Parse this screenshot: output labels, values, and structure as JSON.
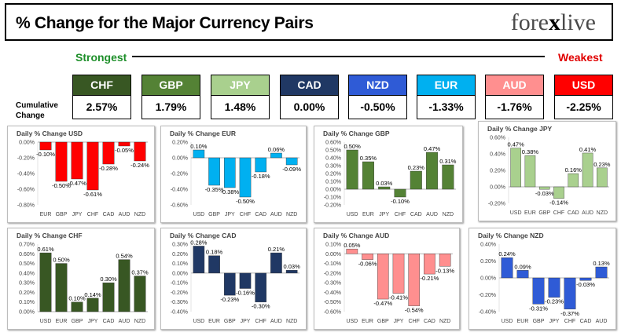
{
  "title": "% Change for the Major Currency Pairs",
  "logo": {
    "part1": "fore",
    "part2": "x",
    "part3": "live"
  },
  "scale": {
    "strongest": "Strongest",
    "weakest": "Weakest"
  },
  "cumulative_label": "Cumulative Change",
  "colors": {
    "CHF": "#385723",
    "GBP": "#548235",
    "JPY": "#a9d08e",
    "CAD": "#203864",
    "NZD": "#2f5bd6",
    "EUR": "#00b0f0",
    "AUD": "#ff8f8f",
    "USD": "#ff0000"
  },
  "cumulative": [
    {
      "currency": "CHF",
      "value": "2.57%"
    },
    {
      "currency": "GBP",
      "value": "1.79%"
    },
    {
      "currency": "JPY",
      "value": "1.48%"
    },
    {
      "currency": "CAD",
      "value": "0.00%"
    },
    {
      "currency": "NZD",
      "value": "-0.50%"
    },
    {
      "currency": "EUR",
      "value": "-1.33%"
    },
    {
      "currency": "AUD",
      "value": "-1.76%"
    },
    {
      "currency": "USD",
      "value": "-2.25%"
    }
  ],
  "chart_data": [
    {
      "type": "bar",
      "title": "Daily % Change USD",
      "base": "USD",
      "categories": [
        "EUR",
        "GBP",
        "JPY",
        "CHF",
        "CAD",
        "AUD",
        "NZD"
      ],
      "values": [
        -0.1,
        -0.5,
        -0.47,
        -0.61,
        -0.28,
        -0.05,
        -0.24
      ],
      "labels": [
        "-0.10%",
        "-0.50%",
        "-0.47%",
        "-0.61%",
        "-0.28%",
        "-0.05%",
        "-0.24%"
      ],
      "ylim": [
        -0.8,
        0
      ],
      "ticks": [
        "0.00%",
        "-0.20%",
        "-0.40%",
        "-0.60%",
        "-0.80%"
      ],
      "tick_values": [
        0,
        -0.2,
        -0.4,
        -0.6,
        -0.8
      ]
    },
    {
      "type": "bar",
      "title": "Daily % Change EUR",
      "base": "EUR",
      "categories": [
        "USD",
        "GBP",
        "JPY",
        "CHF",
        "CAD",
        "AUD",
        "NZD"
      ],
      "values": [
        0.1,
        -0.35,
        -0.38,
        -0.5,
        -0.18,
        0.06,
        -0.09
      ],
      "labels": [
        "0.10%",
        "-0.35%",
        "-0.38%",
        "-0.50%",
        "-0.18%",
        "0.06%",
        "-0.09%"
      ],
      "ylim": [
        -0.6,
        0.2
      ],
      "ticks": [
        "0.20%",
        "0.00%",
        "-0.20%",
        "-0.40%",
        "-0.60%"
      ],
      "tick_values": [
        0.2,
        0,
        -0.2,
        -0.4,
        -0.6
      ]
    },
    {
      "type": "bar",
      "title": "Daily % Change GBP",
      "base": "GBP",
      "categories": [
        "USD",
        "EUR",
        "JPY",
        "CHF",
        "CAD",
        "AUD",
        "NZD"
      ],
      "values": [
        0.5,
        0.35,
        0.03,
        -0.1,
        0.23,
        0.47,
        0.31
      ],
      "labels": [
        "0.50%",
        "0.35%",
        "0.03%",
        "-0.10%",
        "0.23%",
        "0.47%",
        "0.31%"
      ],
      "ylim": [
        -0.2,
        0.6
      ],
      "ticks": [
        "0.60%",
        "0.50%",
        "0.40%",
        "0.30%",
        "0.20%",
        "0.10%",
        "0.00%",
        "-0.10%",
        "-0.20%"
      ],
      "tick_values": [
        0.6,
        0.5,
        0.4,
        0.3,
        0.2,
        0.1,
        0,
        -0.1,
        -0.2
      ]
    },
    {
      "type": "bar",
      "title": "Daily % Change JPY",
      "base": "JPY",
      "categories": [
        "USD",
        "EUR",
        "GBP",
        "CHF",
        "CAD",
        "AUD",
        "NZD"
      ],
      "values": [
        0.47,
        0.38,
        -0.03,
        -0.14,
        0.16,
        0.41,
        0.23
      ],
      "labels": [
        "0.47%",
        "0.38%",
        "-0.03%",
        "-0.14%",
        "0.16%",
        "0.41%",
        "0.23%"
      ],
      "ylim": [
        -0.2,
        0.6
      ],
      "ticks": [
        "0.60%",
        "0.40%",
        "0.20%",
        "0.00%",
        "-0.20%"
      ],
      "tick_values": [
        0.6,
        0.4,
        0.2,
        0,
        -0.2
      ]
    },
    {
      "type": "bar",
      "title": "Daily % Change CHF",
      "base": "CHF",
      "categories": [
        "USD",
        "EUR",
        "GBP",
        "JPY",
        "CAD",
        "AUD",
        "NZD"
      ],
      "values": [
        0.61,
        0.5,
        0.1,
        0.14,
        0.3,
        0.54,
        0.37
      ],
      "labels": [
        "0.61%",
        "0.50%",
        "0.10%",
        "0.14%",
        "0.30%",
        "0.54%",
        "0.37%"
      ],
      "ylim": [
        0,
        0.7
      ],
      "ticks": [
        "0.70%",
        "0.60%",
        "0.50%",
        "0.40%",
        "0.30%",
        "0.20%",
        "0.10%",
        "0.00%"
      ],
      "tick_values": [
        0.7,
        0.6,
        0.5,
        0.4,
        0.3,
        0.2,
        0.1,
        0
      ]
    },
    {
      "type": "bar",
      "title": "Daily % Change CAD",
      "base": "CAD",
      "categories": [
        "USD",
        "EUR",
        "GBP",
        "JPY",
        "CHF",
        "AUD",
        "NZD"
      ],
      "values": [
        0.28,
        0.18,
        -0.23,
        -0.16,
        -0.3,
        0.21,
        0.03
      ],
      "labels": [
        "0.28%",
        "0.18%",
        "-0.23%",
        "-0.16%",
        "-0.30%",
        "0.21%",
        "0.03%"
      ],
      "ylim": [
        -0.4,
        0.3
      ],
      "ticks": [
        "0.30%",
        "0.20%",
        "0.10%",
        "0.00%",
        "-0.10%",
        "-0.20%",
        "-0.30%",
        "-0.40%"
      ],
      "tick_values": [
        0.3,
        0.2,
        0.1,
        0,
        -0.1,
        -0.2,
        -0.3,
        -0.4
      ]
    },
    {
      "type": "bar",
      "title": "Daily % Change AUD",
      "base": "AUD",
      "categories": [
        "USD",
        "EUR",
        "GBP",
        "JPY",
        "CHF",
        "CAD",
        "NZD"
      ],
      "values": [
        0.05,
        -0.06,
        -0.47,
        -0.41,
        -0.54,
        -0.21,
        -0.13
      ],
      "labels": [
        "0.05%",
        "-0.06%",
        "-0.47%",
        "-0.41%",
        "-0.54%",
        "-0.21%",
        "-0.13%"
      ],
      "ylim": [
        -0.6,
        0.1
      ],
      "ticks": [
        "0.10%",
        "0.00%",
        "-0.10%",
        "-0.20%",
        "-0.30%",
        "-0.40%",
        "-0.50%",
        "-0.60%"
      ],
      "tick_values": [
        0.1,
        0,
        -0.1,
        -0.2,
        -0.3,
        -0.4,
        -0.5,
        -0.6
      ]
    },
    {
      "type": "bar",
      "title": "Daily % Change NZD",
      "base": "NZD",
      "categories": [
        "USD",
        "EUR",
        "GBP",
        "JPY",
        "CHF",
        "CAD",
        "AUD"
      ],
      "values": [
        0.24,
        0.09,
        -0.31,
        -0.23,
        -0.37,
        -0.03,
        0.13
      ],
      "labels": [
        "0.24%",
        "0.09%",
        "-0.31%",
        "-0.23%",
        "-0.37%",
        "-0.03%",
        "0.13%"
      ],
      "ylim": [
        -0.4,
        0.4
      ],
      "ticks": [
        "0.40%",
        "0.20%",
        "0.00%",
        "-0.20%",
        "-0.40%"
      ],
      "tick_values": [
        0.4,
        0.2,
        0,
        -0.2,
        -0.4
      ]
    }
  ]
}
